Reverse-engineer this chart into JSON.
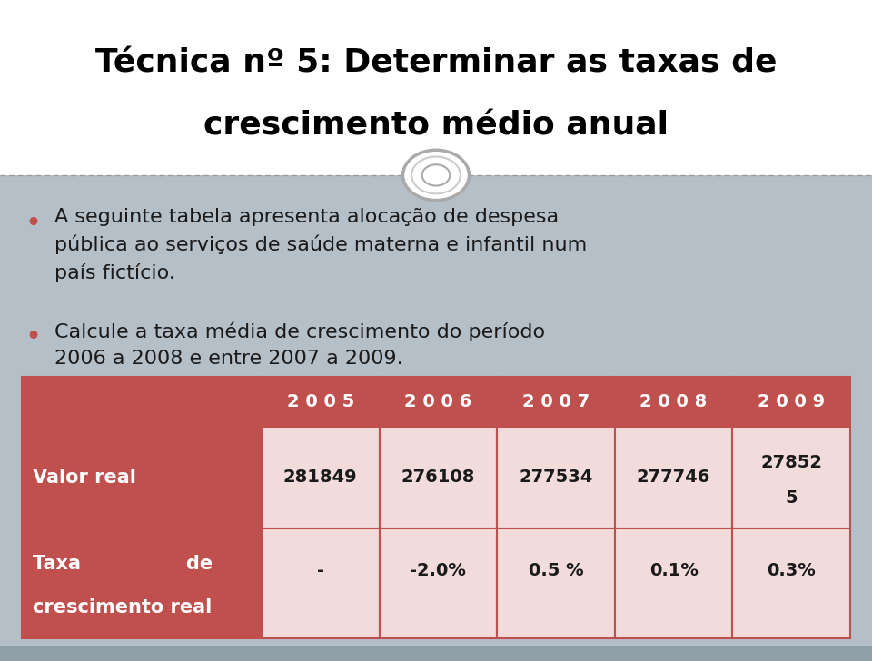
{
  "title_line1": "Técnica nº 5: Determinar as taxas de",
  "title_line2": "crescimento médio anual",
  "bg_color": "#b5bfc8",
  "bg_bottom_strip": "#8fa0a8",
  "title_bg": "#ffffff",
  "table_header_bg": "#c0504d",
  "table_row_bg": "#f2dcdb",
  "table_border": "#c0504d",
  "title_color": "#000000",
  "text_color": "#1a1a1a",
  "header_text_color": "#ffffff",
  "label_text_color": "#ffffff",
  "bullet_color": "#c0504d",
  "divider_color": "#999999",
  "years_spaced": [
    "2 0 0 5",
    "2 0 0 6",
    "2 0 0 7",
    "2 0 0 8",
    "2 0 0 9"
  ],
  "row1_label": "Valor real",
  "row1_values": [
    "281849",
    "276108",
    "277534",
    "277746",
    "27852"
  ],
  "row1_val_extra": "5",
  "row2_label_l1": "Taxa                de",
  "row2_label_l2": "crescimento real",
  "row2_values": [
    "-",
    "-2.0%",
    "0.5 %",
    "0.1%",
    "0.3%"
  ],
  "circle_fill": "#ffffff",
  "circle_edge1": "#aaaaaa",
  "circle_edge2": "#cccccc",
  "title_fontsize": 26,
  "body_fontsize": 16,
  "table_header_fontsize": 14,
  "table_body_fontsize": 14,
  "label_fontsize": 15,
  "bullet_fontsize": 22
}
